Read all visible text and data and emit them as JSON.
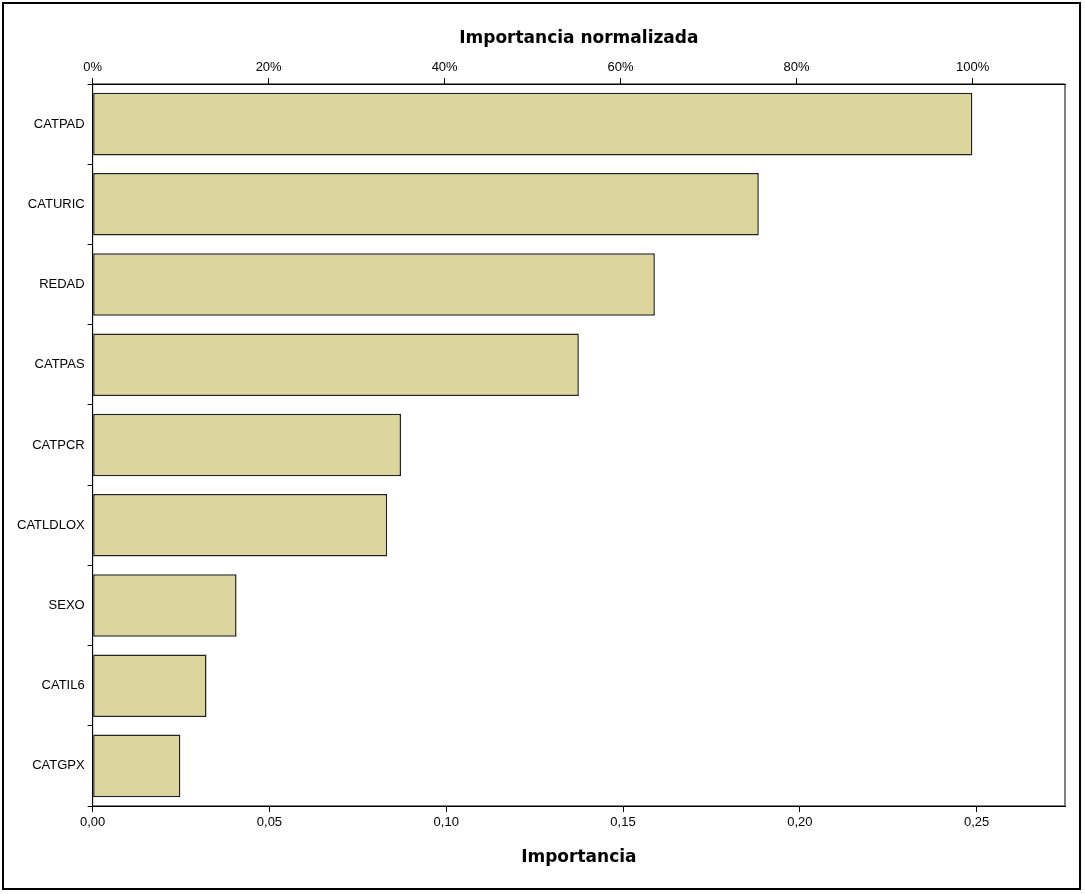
{
  "chart_data": {
    "type": "bar",
    "orientation": "horizontal",
    "xlabel": "Importancia",
    "x2label": "Importancia normalizada",
    "categories": [
      "CATPAD",
      "CATURIC",
      "REDAD",
      "CATPAS",
      "CATPCR",
      "CATLDLOX",
      "SEXO",
      "CATIL6",
      "CATGPX"
    ],
    "values": [
      0.2488,
      0.1884,
      0.159,
      0.1375,
      0.0872,
      0.0833,
      0.0407,
      0.0322,
      0.0248
    ],
    "color": "#dcd59c",
    "xlim": [
      0,
      0.275
    ],
    "xticks": [
      {
        "value": 0,
        "label": "0,00"
      },
      {
        "value": 0.05,
        "label": "0,05"
      },
      {
        "value": 0.1,
        "label": "0,10"
      },
      {
        "value": 0.15,
        "label": "0,15"
      },
      {
        "value": 0.2,
        "label": "0,20"
      },
      {
        "value": 0.25,
        "label": "0,25"
      }
    ],
    "x2lim": [
      0,
      110.5
    ],
    "x2ticks": [
      {
        "value": 0,
        "label": "0%"
      },
      {
        "value": 20,
        "label": "20%"
      },
      {
        "value": 40,
        "label": "40%"
      },
      {
        "value": 60,
        "label": "60%"
      },
      {
        "value": 80,
        "label": "80%"
      },
      {
        "value": 100,
        "label": "100%"
      }
    ],
    "grid": false,
    "legend": false
  }
}
